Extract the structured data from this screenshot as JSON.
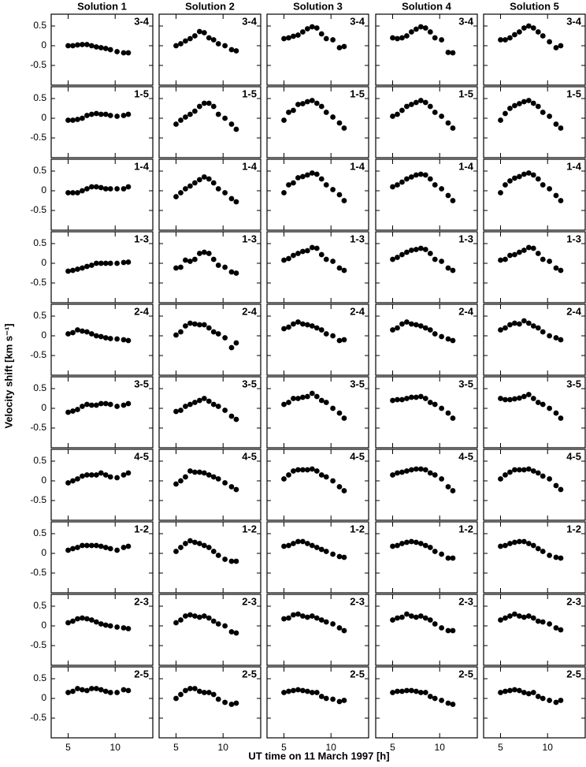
{
  "chart_data": {
    "type": "scatter",
    "columns": [
      "Solution 1",
      "Solution 2",
      "Solution 3",
      "Solution 4",
      "Solution 5"
    ],
    "xlabel": "UT time on 11 March 1997 [h]",
    "ylabel": "Velocity shift [km s⁻¹]",
    "xlim": [
      3.2,
      14
    ],
    "ylim": [
      -1.0,
      0.8
    ],
    "xticks": [
      5,
      10
    ],
    "yticks": [
      0.5,
      0,
      -0.5
    ],
    "color": "#000000",
    "x": [
      5,
      5.5,
      6,
      6.5,
      7,
      7.5,
      8,
      8.5,
      9,
      9.5,
      10.2,
      10.9,
      11.4
    ],
    "panels": [
      {
        "label": "3-4",
        "values": [
          [
            0,
            0,
            0.02,
            0.03,
            0.03,
            0,
            -0.03,
            -0.05,
            -0.07,
            -0.1,
            -0.15,
            -0.18,
            -0.18
          ],
          [
            0,
            0.05,
            0.12,
            0.18,
            0.25,
            0.36,
            0.33,
            0.2,
            0.15,
            0.05,
            0,
            -0.1,
            -0.13
          ],
          [
            0.18,
            0.2,
            0.24,
            0.27,
            0.35,
            0.43,
            0.48,
            0.45,
            0.3,
            0.18,
            0.15,
            -0.05,
            -0.02
          ],
          [
            0.2,
            0.18,
            0.2,
            0.25,
            0.35,
            0.42,
            0.48,
            0.45,
            0.35,
            0.2,
            0.15,
            -0.17,
            -0.18
          ],
          [
            0.15,
            0.15,
            0.2,
            0.28,
            0.35,
            0.45,
            0.5,
            0.45,
            0.35,
            0.25,
            0.1,
            -0.05,
            0
          ]
        ]
      },
      {
        "label": "1-5",
        "values": [
          [
            -0.05,
            -0.05,
            -0.03,
            0,
            0.07,
            0.1,
            0.12,
            0.1,
            0.1,
            0.07,
            0.05,
            0.07,
            0.1
          ],
          [
            -0.15,
            -0.05,
            0.03,
            0.1,
            0.18,
            0.3,
            0.38,
            0.38,
            0.3,
            0.1,
            0,
            -0.15,
            -0.28
          ],
          [
            -0.05,
            0.15,
            0.2,
            0.35,
            0.37,
            0.42,
            0.45,
            0.38,
            0.3,
            0.15,
            0.03,
            -0.12,
            -0.25
          ],
          [
            0.05,
            0.1,
            0.2,
            0.3,
            0.35,
            0.4,
            0.45,
            0.4,
            0.3,
            0.15,
            0.05,
            -0.12,
            -0.25
          ],
          [
            -0.05,
            0.12,
            0.25,
            0.32,
            0.37,
            0.42,
            0.45,
            0.38,
            0.3,
            0.15,
            0.05,
            -0.15,
            -0.25
          ]
        ]
      },
      {
        "label": "1-4",
        "values": [
          [
            -0.05,
            -0.05,
            -0.05,
            0,
            0.05,
            0.1,
            0.1,
            0.08,
            0.05,
            0.05,
            0.05,
            0.05,
            0.1
          ],
          [
            -0.15,
            -0.05,
            0.05,
            0.12,
            0.2,
            0.28,
            0.35,
            0.3,
            0.2,
            0.05,
            -0.05,
            -0.2,
            -0.28
          ],
          [
            -0.05,
            0.15,
            0.2,
            0.33,
            0.36,
            0.4,
            0.45,
            0.42,
            0.3,
            0.15,
            0.03,
            -0.1,
            -0.25
          ],
          [
            0.1,
            0.15,
            0.22,
            0.3,
            0.35,
            0.4,
            0.42,
            0.4,
            0.3,
            0.15,
            0.05,
            -0.12,
            -0.25
          ],
          [
            -0.05,
            0.15,
            0.25,
            0.32,
            0.36,
            0.42,
            0.45,
            0.4,
            0.3,
            0.15,
            0.05,
            -0.12,
            -0.25
          ]
        ]
      },
      {
        "label": "1-3",
        "values": [
          [
            -0.2,
            -0.18,
            -0.15,
            -0.12,
            -0.08,
            -0.05,
            0,
            0,
            0,
            0,
            0,
            0.02,
            0.03
          ],
          [
            -0.12,
            -0.1,
            0.08,
            0.05,
            0.1,
            0.25,
            0.28,
            0.25,
            0.1,
            -0.05,
            -0.1,
            -0.22,
            -0.25
          ],
          [
            0.08,
            0.12,
            0.2,
            0.25,
            0.3,
            0.32,
            0.4,
            0.38,
            0.22,
            0.1,
            0.05,
            -0.12,
            -0.18
          ],
          [
            0.1,
            0.15,
            0.22,
            0.28,
            0.33,
            0.35,
            0.38,
            0.35,
            0.25,
            0.1,
            0.05,
            -0.12,
            -0.18
          ],
          [
            0.08,
            0.1,
            0.2,
            0.22,
            0.28,
            0.33,
            0.4,
            0.38,
            0.25,
            0.1,
            0.05,
            -0.12,
            -0.18
          ]
        ]
      },
      {
        "label": "2-4",
        "values": [
          [
            0.05,
            0.08,
            0.15,
            0.12,
            0.1,
            0.05,
            0,
            -0.02,
            -0.05,
            -0.07,
            -0.08,
            -0.1,
            -0.12
          ],
          [
            0.02,
            0.1,
            0.25,
            0.32,
            0.3,
            0.28,
            0.28,
            0.2,
            0.1,
            0.05,
            -0.05,
            -0.3,
            -0.18
          ],
          [
            0.18,
            0.22,
            0.3,
            0.35,
            0.3,
            0.28,
            0.25,
            0.2,
            0.15,
            0.05,
            0,
            -0.12,
            -0.1
          ],
          [
            0.15,
            0.2,
            0.3,
            0.35,
            0.3,
            0.28,
            0.25,
            0.2,
            0.15,
            0.05,
            -0.02,
            -0.08,
            -0.12
          ],
          [
            0.15,
            0.2,
            0.28,
            0.32,
            0.3,
            0.38,
            0.32,
            0.25,
            0.2,
            0.1,
            0,
            -0.05,
            -0.1
          ]
        ]
      },
      {
        "label": "3-5",
        "values": [
          [
            -0.1,
            -0.07,
            -0.03,
            0.05,
            0.1,
            0.08,
            0.08,
            0.12,
            0.12,
            0.1,
            0.05,
            0.08,
            0.12
          ],
          [
            -0.08,
            -0.05,
            0.05,
            0.1,
            0.15,
            0.2,
            0.25,
            0.18,
            0.1,
            0.05,
            -0.05,
            -0.2,
            -0.28
          ],
          [
            0.1,
            0.15,
            0.25,
            0.25,
            0.28,
            0.3,
            0.38,
            0.3,
            0.2,
            0.15,
            0,
            -0.12,
            -0.25
          ],
          [
            0.2,
            0.22,
            0.22,
            0.25,
            0.28,
            0.28,
            0.3,
            0.25,
            0.15,
            0.1,
            0,
            -0.12,
            -0.25
          ],
          [
            0.25,
            0.22,
            0.22,
            0.24,
            0.26,
            0.3,
            0.35,
            0.25,
            0.15,
            0.1,
            0,
            -0.12,
            -0.25
          ]
        ]
      },
      {
        "label": "4-5",
        "values": [
          [
            -0.05,
            0,
            0.05,
            0.12,
            0.15,
            0.15,
            0.15,
            0.2,
            0.15,
            0.1,
            0.08,
            0.15,
            0.2
          ],
          [
            -0.08,
            0,
            0.1,
            0.25,
            0.22,
            0.22,
            0.2,
            0.15,
            0.1,
            0.05,
            -0.05,
            -0.15,
            -0.22
          ],
          [
            0.05,
            0.15,
            0.25,
            0.28,
            0.28,
            0.28,
            0.3,
            0.25,
            0.15,
            0.1,
            0,
            -0.15,
            -0.25
          ],
          [
            0.15,
            0.2,
            0.22,
            0.25,
            0.28,
            0.3,
            0.3,
            0.28,
            0.2,
            0.15,
            0.05,
            -0.15,
            -0.25
          ],
          [
            0.05,
            0.15,
            0.22,
            0.28,
            0.28,
            0.28,
            0.3,
            0.25,
            0.2,
            0.12,
            0.05,
            -0.12,
            -0.22
          ]
        ]
      },
      {
        "label": "1-2",
        "values": [
          [
            0.08,
            0.12,
            0.15,
            0.2,
            0.2,
            0.2,
            0.2,
            0.18,
            0.15,
            0.12,
            0.08,
            0.15,
            0.18
          ],
          [
            0.05,
            0.15,
            0.25,
            0.32,
            0.28,
            0.25,
            0.2,
            0.15,
            0.05,
            -0.05,
            -0.15,
            -0.2,
            -0.2
          ],
          [
            0.18,
            0.2,
            0.25,
            0.3,
            0.3,
            0.25,
            0.2,
            0.15,
            0.1,
            0.05,
            -0.02,
            -0.08,
            -0.1
          ],
          [
            0.18,
            0.2,
            0.25,
            0.28,
            0.3,
            0.28,
            0.25,
            0.2,
            0.15,
            0.05,
            -0.02,
            -0.12,
            -0.12
          ],
          [
            0.18,
            0.2,
            0.25,
            0.28,
            0.3,
            0.3,
            0.25,
            0.2,
            0.12,
            0.05,
            -0.05,
            -0.1,
            -0.12
          ]
        ]
      },
      {
        "label": "2-3",
        "values": [
          [
            0.08,
            0.12,
            0.18,
            0.2,
            0.18,
            0.15,
            0.1,
            0.05,
            0.02,
            0,
            -0.03,
            -0.05,
            -0.07
          ],
          [
            0.08,
            0.15,
            0.25,
            0.28,
            0.25,
            0.22,
            0.25,
            0.2,
            0.12,
            0.05,
            0,
            -0.15,
            -0.18
          ],
          [
            0.18,
            0.2,
            0.28,
            0.3,
            0.25,
            0.22,
            0.25,
            0.2,
            0.15,
            0.1,
            0.05,
            -0.05,
            -0.12
          ],
          [
            0.15,
            0.2,
            0.22,
            0.3,
            0.25,
            0.22,
            0.25,
            0.2,
            0.15,
            0.05,
            -0.05,
            -0.12,
            -0.12
          ],
          [
            0.15,
            0.2,
            0.25,
            0.3,
            0.25,
            0.22,
            0.25,
            0.2,
            0.12,
            0.1,
            0.05,
            -0.05,
            -0.1
          ]
        ]
      },
      {
        "label": "2-5",
        "values": [
          [
            0.15,
            0.18,
            0.25,
            0.22,
            0.2,
            0.25,
            0.25,
            0.22,
            0.18,
            0.15,
            0.15,
            0.22,
            0.2
          ],
          [
            0,
            0.1,
            0.2,
            0.25,
            0.25,
            0.18,
            0.15,
            0.15,
            0.1,
            -0.02,
            -0.1,
            -0.15,
            -0.12
          ],
          [
            0.15,
            0.18,
            0.2,
            0.22,
            0.2,
            0.18,
            0.15,
            0.15,
            0.05,
            0,
            -0.02,
            -0.08,
            -0.05
          ],
          [
            0.15,
            0.18,
            0.18,
            0.2,
            0.2,
            0.18,
            0.15,
            0.15,
            0.05,
            0,
            -0.05,
            -0.12,
            -0.15
          ],
          [
            0.15,
            0.18,
            0.2,
            0.22,
            0.2,
            0.15,
            0.12,
            0.15,
            0.05,
            0,
            -0.05,
            -0.1,
            -0.05
          ]
        ]
      }
    ]
  }
}
